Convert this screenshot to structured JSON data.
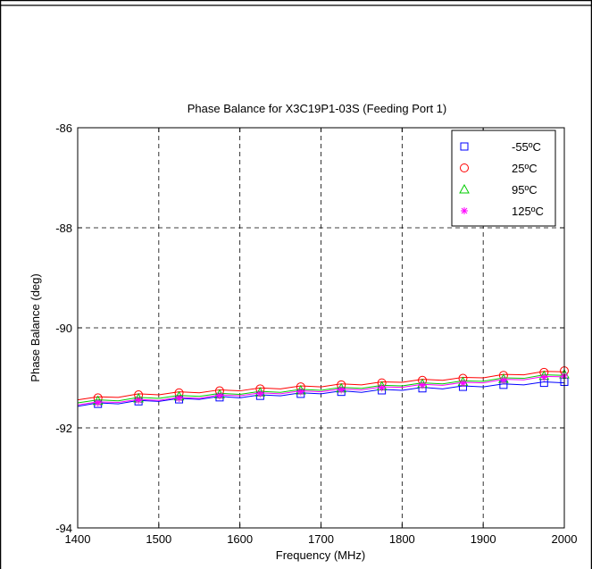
{
  "chart_data": {
    "type": "line",
    "title": "Phase Balance for X3C19P1-03S (Feeding Port 1)",
    "xlabel": "Frequency (MHz)",
    "ylabel": "Phase Balance (deg)",
    "xlim": [
      1400,
      2000
    ],
    "ylim": [
      -94,
      -86
    ],
    "x_ticks": [
      1400,
      1500,
      1600,
      1700,
      1800,
      1900,
      2000
    ],
    "y_ticks": [
      -94,
      -92,
      -90,
      -88,
      -86
    ],
    "x_tick_labels": [
      "1400",
      "1500",
      "1600",
      "1700",
      "1800",
      "1900",
      "2000"
    ],
    "y_tick_labels": [
      "-94",
      "-92",
      "-90",
      "-88",
      "-86"
    ],
    "grid": true,
    "legend_position": "top-right",
    "x": [
      1400,
      1425,
      1450,
      1475,
      1500,
      1525,
      1550,
      1575,
      1600,
      1625,
      1650,
      1675,
      1700,
      1725,
      1750,
      1775,
      1800,
      1825,
      1850,
      1875,
      1900,
      1925,
      1950,
      1975,
      2000
    ],
    "series": [
      {
        "name": "-55ºC",
        "marker": "square",
        "color": "#0000ff",
        "values": [
          -91.55,
          -91.52,
          -91.5,
          -91.47,
          -91.45,
          -91.43,
          -91.41,
          -91.39,
          -91.38,
          -91.36,
          -91.34,
          -91.32,
          -91.3,
          -91.28,
          -91.27,
          -91.25,
          -91.23,
          -91.21,
          -91.2,
          -91.18,
          -91.16,
          -91.14,
          -91.12,
          -91.1,
          -91.08
        ]
      },
      {
        "name": "25ºC",
        "marker": "circle",
        "color": "#ff0000",
        "values": [
          -91.42,
          -91.4,
          -91.37,
          -91.34,
          -91.32,
          -91.3,
          -91.28,
          -91.26,
          -91.24,
          -91.22,
          -91.2,
          -91.18,
          -91.16,
          -91.14,
          -91.12,
          -91.1,
          -91.07,
          -91.05,
          -91.03,
          -91.01,
          -90.98,
          -90.95,
          -90.92,
          -90.89,
          -90.86
        ]
      },
      {
        "name": "95ºC",
        "marker": "triangle",
        "color": "#00cc00",
        "values": [
          -91.48,
          -91.46,
          -91.44,
          -91.41,
          -91.39,
          -91.37,
          -91.35,
          -91.33,
          -91.31,
          -91.29,
          -91.27,
          -91.25,
          -91.23,
          -91.21,
          -91.19,
          -91.17,
          -91.14,
          -91.12,
          -91.1,
          -91.08,
          -91.05,
          -91.02,
          -90.99,
          -90.96,
          -90.93
        ]
      },
      {
        "name": "125ºC",
        "marker": "asterisk",
        "color": "#ff00ff",
        "values": [
          -91.52,
          -91.5,
          -91.47,
          -91.45,
          -91.43,
          -91.41,
          -91.39,
          -91.36,
          -91.34,
          -91.32,
          -91.3,
          -91.28,
          -91.26,
          -91.24,
          -91.22,
          -91.2,
          -91.17,
          -91.15,
          -91.13,
          -91.11,
          -91.08,
          -91.05,
          -91.02,
          -90.99,
          -90.96
        ]
      }
    ]
  }
}
